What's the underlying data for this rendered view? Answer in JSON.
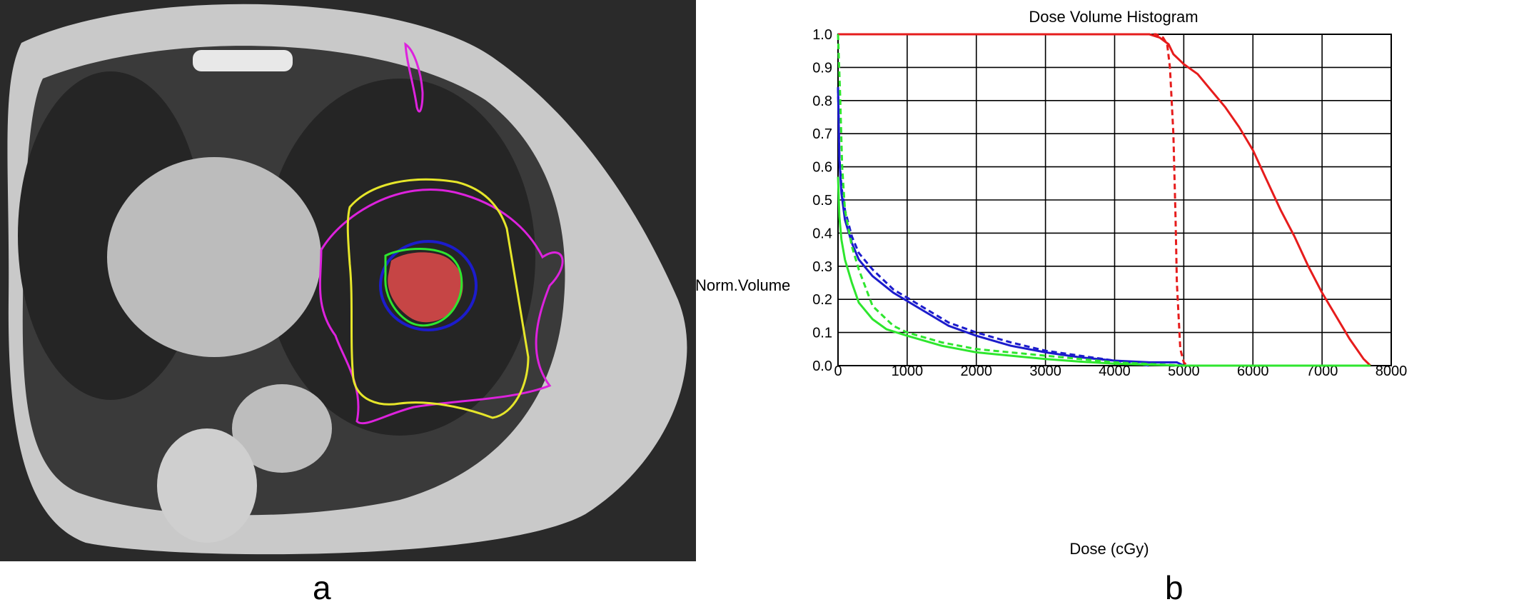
{
  "panels": {
    "a": "a",
    "b": "b"
  },
  "ct_image": {
    "contour_colors": {
      "gtv_fill": "#e34b4b",
      "gtv_outline": "#2ee62e",
      "ptv": "#1c1ccc",
      "magenta": "#dd22dd",
      "yellow": "#e6e62a"
    }
  },
  "chart_data": {
    "type": "line",
    "title": "Dose Volume Histogram",
    "xlabel": "Dose (cGy)",
    "ylabel": "Norm.Volume",
    "xlim": [
      0,
      8000
    ],
    "ylim": [
      0,
      1
    ],
    "x_ticks": [
      "0",
      "1000",
      "2000",
      "3000",
      "4000",
      "5000",
      "6000",
      "7000",
      "8000"
    ],
    "y_ticks": [
      "0.0",
      "0.1",
      "0.2",
      "0.3",
      "0.4",
      "0.5",
      "0.6",
      "0.7",
      "0.8",
      "0.9",
      "1.0"
    ],
    "grid": true,
    "series": [
      {
        "color": "#e61c1c",
        "dash": "solid",
        "x": [
          0,
          4500,
          4650,
          4780,
          4850,
          5000,
          5200,
          5400,
          5600,
          5800,
          6000,
          6200,
          6400,
          6600,
          6800,
          7000,
          7200,
          7400,
          7600,
          7700
        ],
        "y": [
          1.0,
          1.0,
          0.99,
          0.97,
          0.94,
          0.91,
          0.88,
          0.83,
          0.78,
          0.72,
          0.65,
          0.56,
          0.47,
          0.39,
          0.3,
          0.22,
          0.15,
          0.08,
          0.02,
          0.0
        ]
      },
      {
        "color": "#e61c1c",
        "dash": "dashed",
        "x": [
          0,
          4400,
          4600,
          4700,
          4760,
          4800,
          4850,
          4880,
          4900,
          4950,
          5000,
          5050,
          5100,
          5200
        ],
        "y": [
          1.0,
          1.0,
          1.0,
          0.99,
          0.97,
          0.9,
          0.7,
          0.45,
          0.25,
          0.05,
          0.01,
          0.0,
          0.0,
          0.0
        ]
      },
      {
        "color": "#1c1ccc",
        "dash": "solid",
        "x": [
          0,
          20,
          50,
          100,
          200,
          300,
          500,
          800,
          1200,
          1600,
          2000,
          2500,
          3000,
          3500,
          4000,
          4500,
          4900,
          4950,
          5000
        ],
        "y": [
          0.84,
          0.62,
          0.52,
          0.44,
          0.37,
          0.32,
          0.27,
          0.22,
          0.17,
          0.12,
          0.09,
          0.06,
          0.04,
          0.025,
          0.015,
          0.01,
          0.01,
          0.005,
          0.0
        ]
      },
      {
        "color": "#1c1ccc",
        "dash": "dashed",
        "x": [
          0,
          20,
          50,
          100,
          200,
          300,
          500,
          800,
          1200,
          1600,
          2000,
          2500,
          3000,
          3500,
          4000,
          4500
        ],
        "y": [
          0.84,
          0.63,
          0.54,
          0.47,
          0.39,
          0.34,
          0.29,
          0.23,
          0.18,
          0.13,
          0.1,
          0.07,
          0.045,
          0.03,
          0.015,
          0.0
        ]
      },
      {
        "color": "#2ee62e",
        "dash": "solid",
        "x": [
          0,
          20,
          50,
          100,
          200,
          300,
          500,
          700,
          1000,
          1500,
          2000,
          2500,
          3000,
          3500,
          4000,
          5000,
          6000,
          7700
        ],
        "y": [
          0.57,
          0.45,
          0.38,
          0.32,
          0.25,
          0.19,
          0.14,
          0.11,
          0.09,
          0.06,
          0.04,
          0.03,
          0.02,
          0.012,
          0.006,
          0.0,
          0.0,
          0.0
        ]
      },
      {
        "color": "#2ee62e",
        "dash": "dashed",
        "x": [
          0,
          30,
          60,
          100,
          200,
          300,
          500,
          800,
          1000,
          1500,
          2000,
          3000,
          4000,
          5000,
          6000,
          7000,
          7700
        ],
        "y": [
          1.0,
          0.82,
          0.6,
          0.47,
          0.36,
          0.29,
          0.18,
          0.12,
          0.1,
          0.07,
          0.05,
          0.03,
          0.01,
          0.0,
          0.0,
          0.0,
          0.0
        ]
      }
    ]
  }
}
